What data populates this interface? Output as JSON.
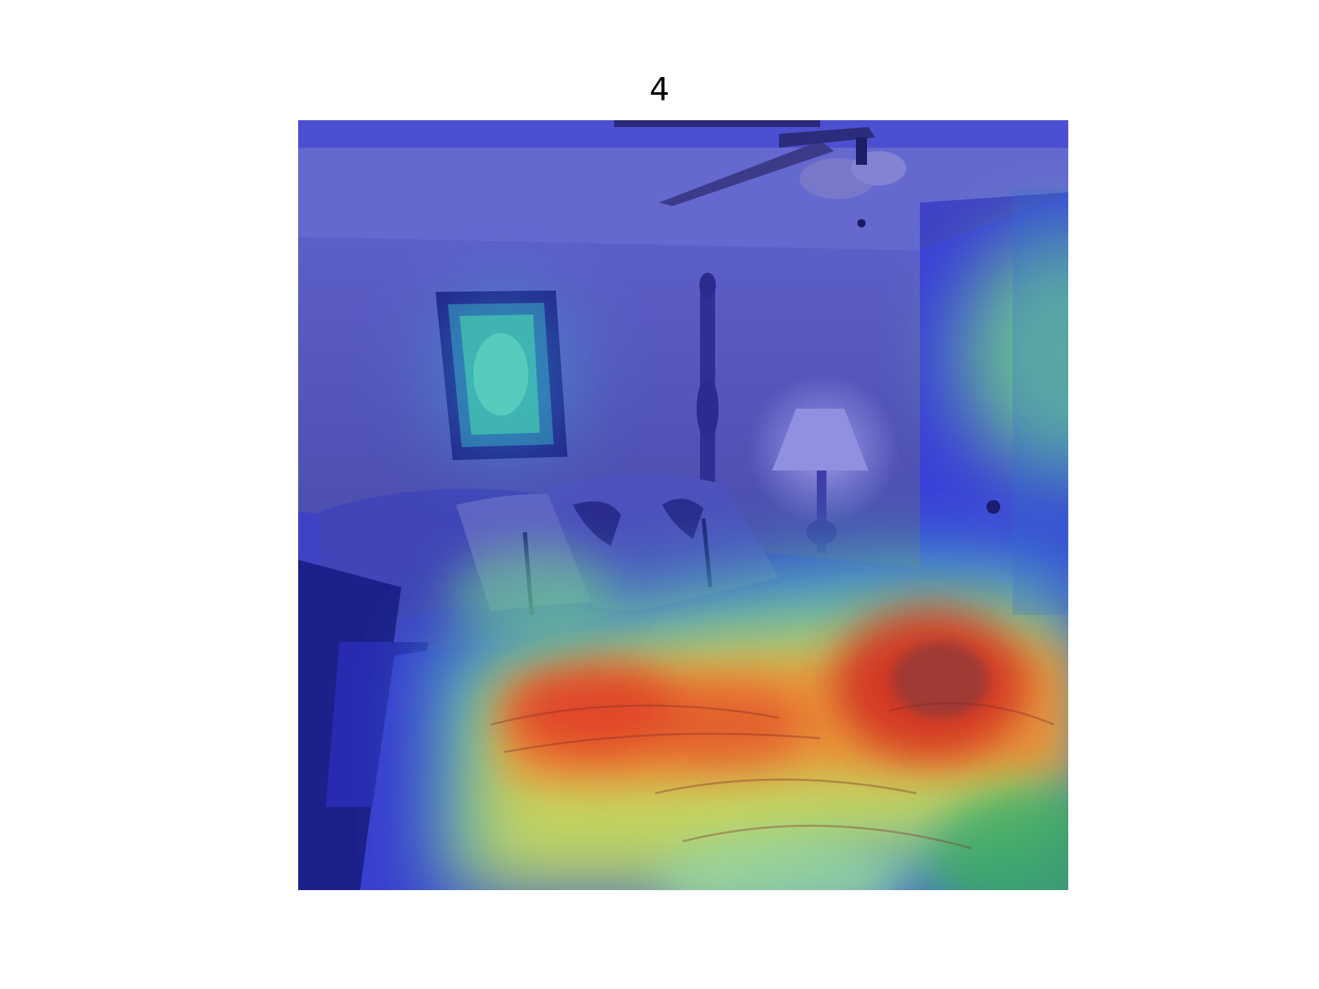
{
  "figure": {
    "title": "4"
  },
  "image": {
    "description_icon": "bedroom-photo-with-attention-heatmap",
    "colormap": "jet",
    "colors": {
      "low": "#2a2ad8",
      "mid": "#5ee09a",
      "high": "#e8432a"
    }
  }
}
